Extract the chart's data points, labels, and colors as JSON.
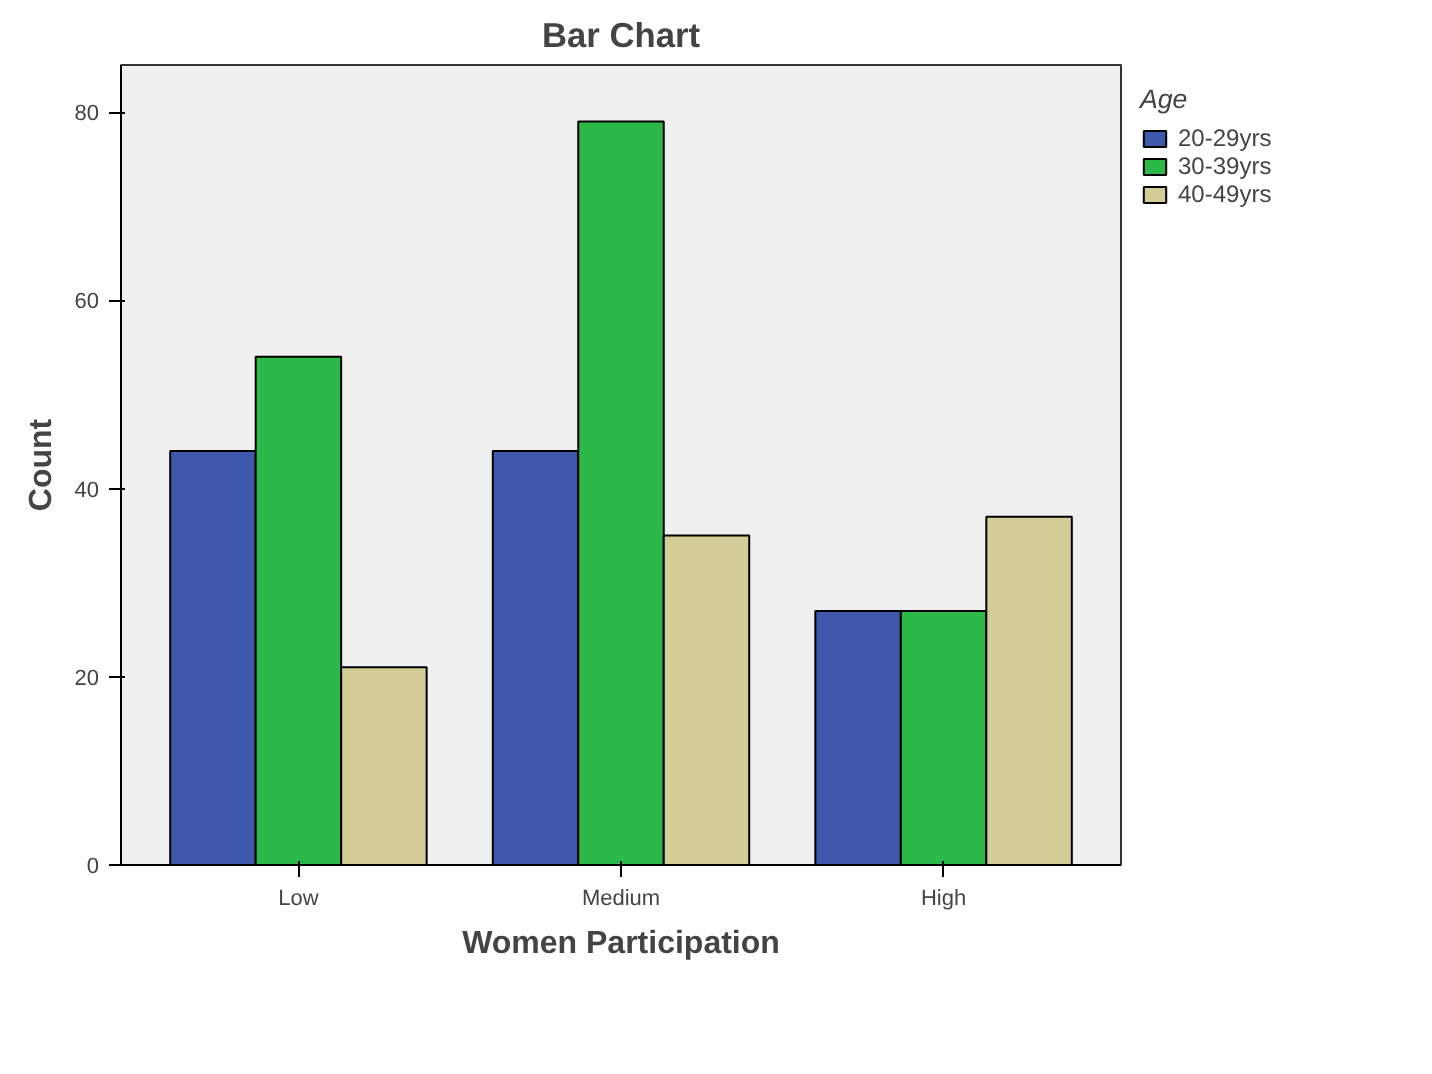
{
  "chart_data": {
    "type": "bar",
    "title": "Bar Chart",
    "xlabel": "Women Participation",
    "ylabel": "Count",
    "legend_title": "Age",
    "categories": [
      "Low",
      "Medium",
      "High"
    ],
    "series": [
      {
        "name": "20-29yrs",
        "color": "#3e58ac",
        "values": [
          44,
          44,
          27
        ]
      },
      {
        "name": "30-39yrs",
        "color": "#2db84a",
        "values": [
          54,
          79,
          27
        ]
      },
      {
        "name": "40-49yrs",
        "color": "#d3ce97",
        "values": [
          21,
          35,
          37
        ]
      }
    ],
    "ylim": [
      0,
      85
    ],
    "yticks": [
      0,
      20,
      40,
      60,
      80
    ],
    "grid": false,
    "legend": "right"
  }
}
